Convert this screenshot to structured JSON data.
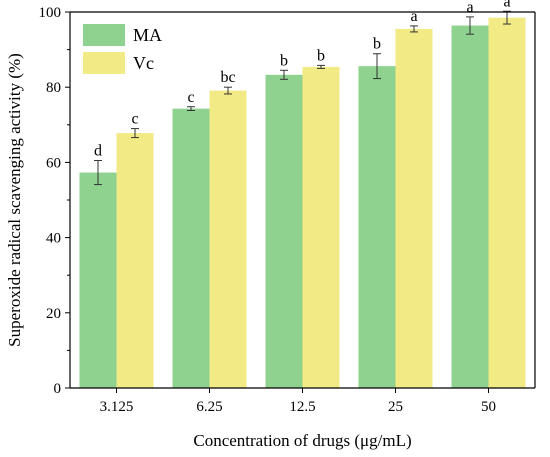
{
  "chart_data": {
    "type": "bar",
    "categories": [
      "3.125",
      "6.25",
      "12.5",
      "25",
      "50"
    ],
    "xlabel": "Concentration of drugs (μg/mL)",
    "ylabel": "Superoxide radical scavenging activity (%)",
    "ylim": [
      0,
      100
    ],
    "yticks": [
      "0",
      "20",
      "40",
      "60",
      "80",
      "100"
    ],
    "grid": false,
    "legend": "top-left",
    "series": [
      {
        "name": "MA",
        "color": "#8fd18f",
        "values": [
          57.3,
          74.3,
          83.3,
          85.6,
          96.4
        ],
        "errors": [
          3.2,
          0.5,
          1.2,
          3.3,
          2.3
        ],
        "labels": [
          "d",
          "c",
          "b",
          "b",
          "a"
        ]
      },
      {
        "name": "Vc",
        "color": "#f2ea84",
        "values": [
          67.8,
          79.1,
          85.4,
          95.5,
          98.5
        ],
        "errors": [
          1.2,
          0.9,
          0.4,
          0.8,
          1.7
        ],
        "labels": [
          "c",
          "bc",
          "b",
          "a",
          "a"
        ]
      }
    ]
  }
}
